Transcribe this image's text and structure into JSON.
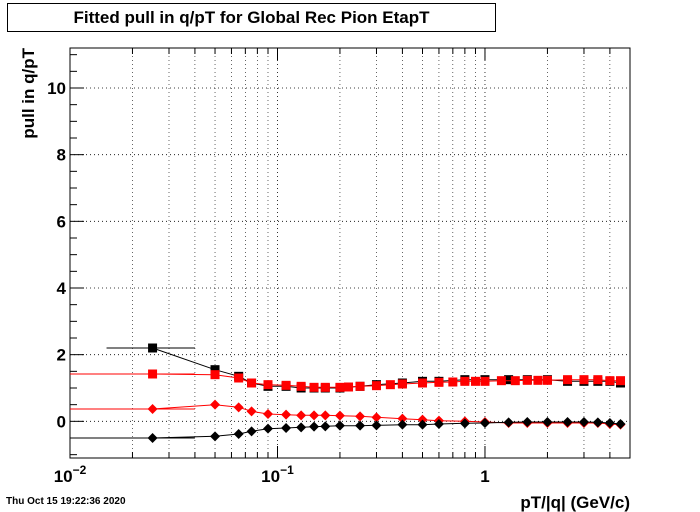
{
  "chart_data": {
    "type": "scatter",
    "title": "Fitted pull in q/pT for Global Rec Pion EtapT",
    "xlabel": "pT/|q| (GeV/c)",
    "ylabel": "pull in q/pT",
    "x_scale": "log",
    "xlim": [
      0.01,
      5
    ],
    "ylim": [
      -1.1,
      11.2
    ],
    "grid": true,
    "x_tick_labels": [
      {
        "base": "10",
        "exp": "−2",
        "value": 0.01
      },
      {
        "base": "10",
        "exp": "−1",
        "value": 0.1
      },
      {
        "base": "1",
        "exp": "",
        "value": 1
      }
    ],
    "y_ticks": [
      0,
      2,
      4,
      6,
      8,
      10
    ],
    "series": [
      {
        "marker": "square",
        "color": "#000000",
        "x": [
          0.025,
          0.05,
          0.065,
          0.075,
          0.09,
          0.11,
          0.13,
          0.15,
          0.17,
          0.2,
          0.25,
          0.3,
          0.4,
          0.5,
          0.6,
          0.8,
          1.0,
          1.3,
          1.6,
          2.0,
          2.5,
          3.0,
          3.5,
          4.0,
          4.5
        ],
        "y": [
          2.2,
          1.55,
          1.35,
          1.15,
          1.05,
          1.05,
          1.0,
          1.0,
          1.0,
          1.0,
          1.05,
          1.1,
          1.15,
          1.2,
          1.2,
          1.25,
          1.25,
          1.25,
          1.25,
          1.25,
          1.2,
          1.2,
          1.2,
          1.2,
          1.15
        ],
        "xerr": [
          [
            0.015,
            0.04
          ]
        ]
      },
      {
        "marker": "square",
        "color": "#ff0000",
        "x": [
          0.025,
          0.05,
          0.065,
          0.075,
          0.09,
          0.11,
          0.13,
          0.15,
          0.17,
          0.2,
          0.22,
          0.25,
          0.3,
          0.35,
          0.4,
          0.5,
          0.6,
          0.7,
          0.8,
          0.9,
          1.0,
          1.2,
          1.4,
          1.6,
          1.8,
          2.0,
          2.5,
          3.0,
          3.5,
          4.0,
          4.5
        ],
        "y": [
          1.42,
          1.4,
          1.3,
          1.15,
          1.1,
          1.08,
          1.05,
          1.02,
          1.02,
          1.02,
          1.03,
          1.05,
          1.07,
          1.1,
          1.12,
          1.15,
          1.17,
          1.18,
          1.2,
          1.2,
          1.2,
          1.22,
          1.22,
          1.23,
          1.23,
          1.23,
          1.25,
          1.25,
          1.25,
          1.22,
          1.22
        ],
        "xerr": [
          [
            0.01,
            0.04
          ]
        ]
      },
      {
        "marker": "diamond",
        "color": "#ff0000",
        "x": [
          0.025,
          0.05,
          0.065,
          0.075,
          0.09,
          0.11,
          0.13,
          0.15,
          0.17,
          0.2,
          0.25,
          0.3,
          0.4,
          0.5,
          0.6,
          0.8,
          1.0,
          1.3,
          1.6,
          2.0,
          2.5,
          3.0,
          3.5,
          4.0,
          4.5
        ],
        "y": [
          0.37,
          0.5,
          0.42,
          0.3,
          0.22,
          0.2,
          0.18,
          0.18,
          0.18,
          0.17,
          0.15,
          0.12,
          0.08,
          0.05,
          0.02,
          0.0,
          -0.02,
          -0.05,
          -0.05,
          -0.05,
          -0.05,
          -0.05,
          -0.05,
          -0.08,
          -0.1
        ],
        "xerr": [
          [
            0.01,
            0.04
          ]
        ]
      },
      {
        "marker": "diamond",
        "color": "#000000",
        "x": [
          0.025,
          0.05,
          0.065,
          0.075,
          0.09,
          0.11,
          0.13,
          0.15,
          0.17,
          0.2,
          0.25,
          0.3,
          0.4,
          0.5,
          0.6,
          0.8,
          1.0,
          1.3,
          1.6,
          2.0,
          2.5,
          3.0,
          3.5,
          4.0,
          4.5
        ],
        "y": [
          -0.5,
          -0.45,
          -0.38,
          -0.3,
          -0.22,
          -0.2,
          -0.18,
          -0.16,
          -0.15,
          -0.13,
          -0.13,
          -0.12,
          -0.1,
          -0.1,
          -0.08,
          -0.06,
          -0.05,
          -0.03,
          -0.02,
          -0.02,
          -0.02,
          -0.02,
          -0.03,
          -0.05,
          -0.08
        ],
        "xerr": [
          [
            0.01,
            0.04
          ]
        ]
      }
    ]
  },
  "datestamp": "Thu Oct 15 19:22:36 2020"
}
